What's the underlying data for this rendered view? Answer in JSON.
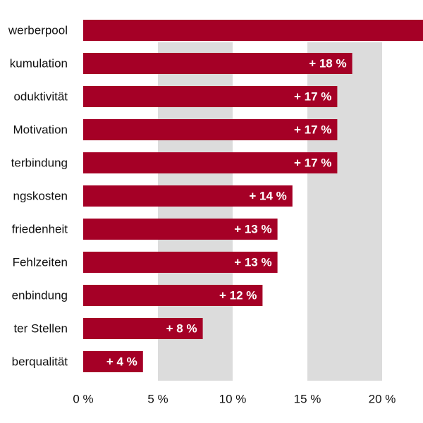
{
  "chart_data": {
    "type": "bar",
    "orientation": "horizontal",
    "categories": [
      "werberpool",
      "kumulation",
      "oduktivität",
      "Motivation",
      "terbindung",
      "ngskosten",
      "friedenheit",
      "Fehlzeiten",
      "enbindung",
      "ter Stellen",
      "berqualität"
    ],
    "values": [
      23,
      18,
      17,
      17,
      17,
      14,
      13,
      13,
      12,
      8,
      4
    ],
    "data_labels": [
      "",
      "+ 18 %",
      "+ 17 %",
      "+ 17 %",
      "+ 17 %",
      "+ 14 %",
      "+ 13 %",
      "+ 13 %",
      "+ 12 %",
      "+ 8 %",
      "+ 4 %"
    ],
    "xlim": [
      0,
      22.4
    ],
    "x_ticks": [
      0,
      5,
      10,
      15,
      20
    ],
    "x_tick_labels": [
      "0 %",
      "5 %",
      "10 %",
      "15 %",
      "20 %"
    ],
    "shaded_bands": [
      [
        5,
        10
      ],
      [
        15,
        20
      ]
    ],
    "grid": false,
    "legend": "none",
    "colors": {
      "bar": "#a50026",
      "band": "#dcdcdc",
      "data_label": "#ffffff",
      "text": "#111111"
    }
  }
}
